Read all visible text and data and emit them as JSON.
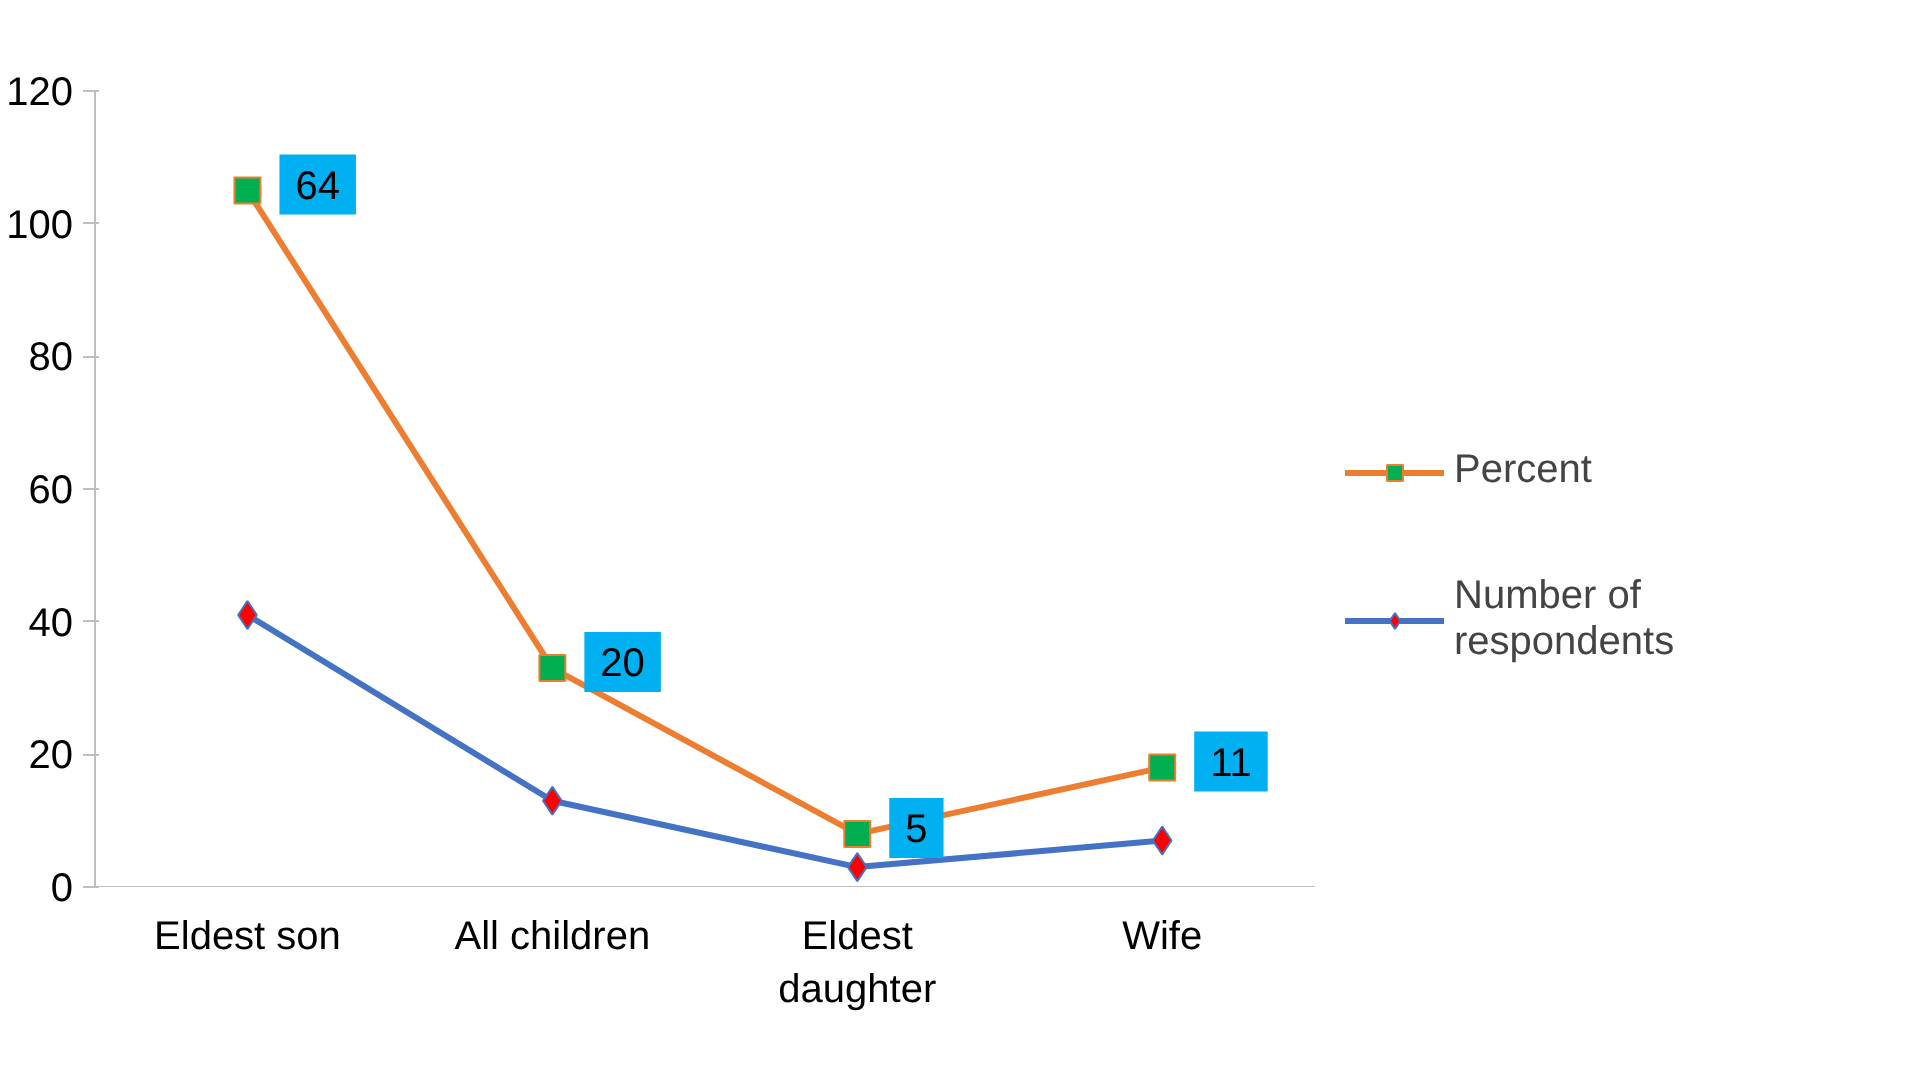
{
  "chart_data": {
    "type": "line",
    "categories": [
      "Eldest son",
      "All children",
      "Eldest daughter",
      "Wife"
    ],
    "series": [
      {
        "name": "Percent",
        "color": "#ed7d31",
        "marker": "square",
        "values": [
          105,
          33,
          8,
          18
        ]
      },
      {
        "name": "Number of respondents",
        "color": "#4472c4",
        "marker": "diamond",
        "values": [
          41,
          13,
          3,
          7
        ]
      }
    ],
    "annotations": [
      {
        "text": "64",
        "x": "Eldest son",
        "y": 105
      },
      {
        "text": "20",
        "x": "All children",
        "y": 33
      },
      {
        "text": "5",
        "x": "Eldest daughter",
        "y": 8
      },
      {
        "text": "11",
        "x": "Wife",
        "y": 18
      }
    ],
    "ylim": [
      0,
      120
    ],
    "yticks": [
      0,
      20,
      40,
      60,
      80,
      100,
      120
    ],
    "grid": false,
    "legend": "right"
  }
}
